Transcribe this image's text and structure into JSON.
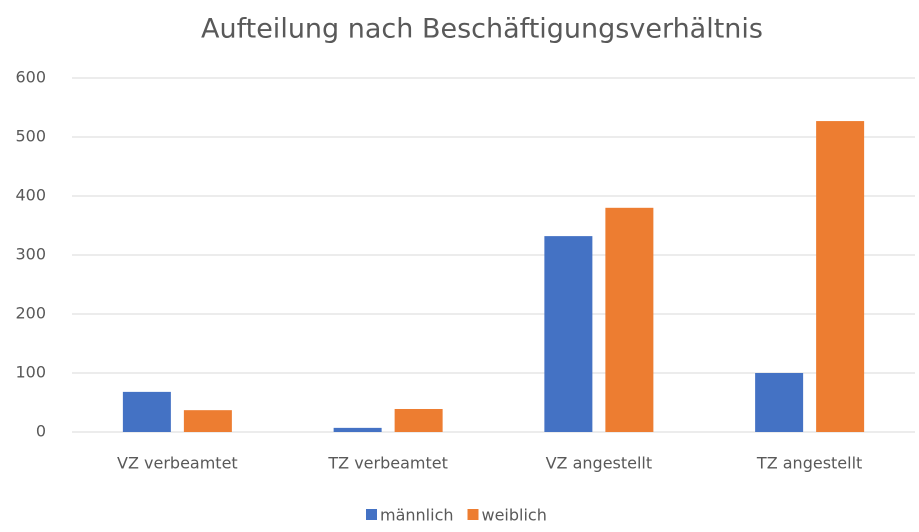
{
  "chart_data": {
    "type": "bar",
    "title": "Aufteilung nach Beschäftigungsverhältnis",
    "categories": [
      "VZ verbeamtet",
      "TZ verbeamtet",
      "VZ angestellt",
      "TZ angestellt"
    ],
    "series": [
      {
        "name": "männlich",
        "color": "#4472c4",
        "values": [
          68,
          7,
          332,
          100
        ]
      },
      {
        "name": "weiblich",
        "color": "#ed7d31",
        "values": [
          37,
          39,
          380,
          527
        ]
      }
    ],
    "ylim": [
      0,
      600
    ],
    "yticks": [
      0,
      100,
      200,
      300,
      400,
      500,
      600
    ],
    "grid": true,
    "legend": "bottom"
  }
}
